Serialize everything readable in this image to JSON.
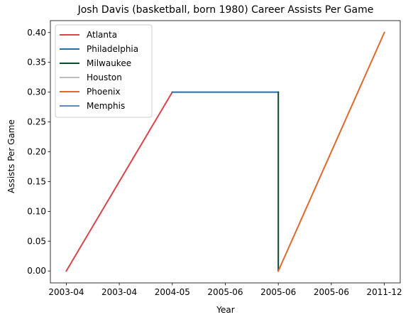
{
  "chart_data": {
    "type": "line",
    "title": "Josh Davis (basketball, born 1980) Career Assists Per Game",
    "xlabel": "Year",
    "ylabel": "Assists Per Game",
    "ylim": [
      -0.02,
      0.42
    ],
    "yticks": [
      "0.00",
      "0.05",
      "0.10",
      "0.15",
      "0.20",
      "0.25",
      "0.30",
      "0.35",
      "0.40"
    ],
    "x_tick_labels": [
      "2003-04",
      "2003-04",
      "2004-05",
      "2005-06",
      "2005-06",
      "2005-06",
      "2011-12"
    ],
    "legend_position": "upper-left",
    "series": [
      {
        "name": "Atlanta",
        "color": "#d9434a",
        "x": [
          0,
          2
        ],
        "y": [
          0.0,
          0.3
        ]
      },
      {
        "name": "Philadelphia",
        "color": "#1f6fb2",
        "x": [
          2,
          4
        ],
        "y": [
          0.3,
          0.3
        ]
      },
      {
        "name": "Milwaukee",
        "color": "#0b4a2a",
        "x": [
          4,
          4
        ],
        "y": [
          0.3,
          0.0
        ]
      },
      {
        "name": "Houston",
        "color": "#bdbdbd",
        "x": [],
        "y": []
      },
      {
        "name": "Phoenix",
        "color": "#e0682e",
        "x": [
          4,
          6
        ],
        "y": [
          0.0,
          0.4
        ]
      },
      {
        "name": "Memphis",
        "color": "#5f87b8",
        "x": [],
        "y": []
      }
    ]
  }
}
